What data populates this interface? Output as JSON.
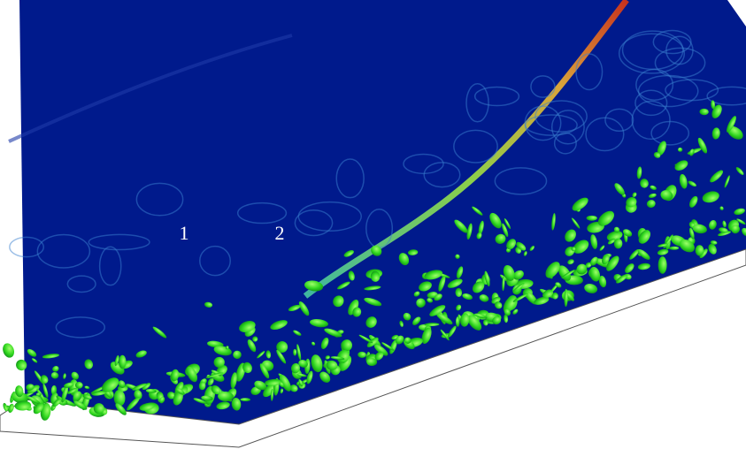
{
  "labels": [
    "1",
    "2"
  ]
}
